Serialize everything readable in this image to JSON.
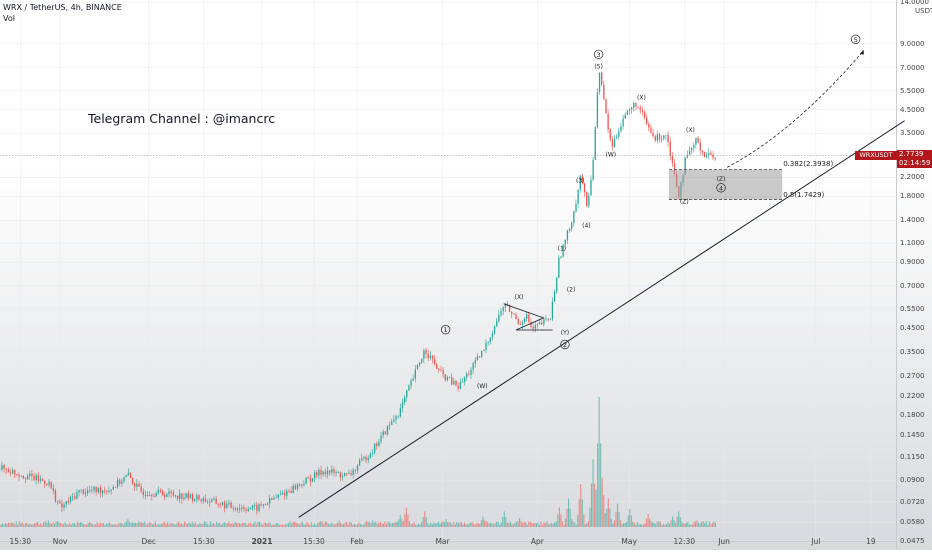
{
  "header": {
    "symbol_line": "WRX / TetherUS, 4h, BINANCE",
    "indicator": "Vol"
  },
  "annotation_text": "Telegram Channel : @imancrc",
  "current_price": {
    "ticker": "WRXUSDT",
    "price": "2.7739",
    "countdown": "02:14:59",
    "value": 2.7739,
    "color": "#b2181b"
  },
  "chart_data": {
    "type": "candlestick",
    "y_scale": "log",
    "y_unit": "USDT",
    "ylim": [
      0.0475,
      14.0
    ],
    "y_ticks": [
      "14.0000",
      "9.0000",
      "7.0000",
      "5.5000",
      "4.5000",
      "3.5000",
      "2.2000",
      "1.8000",
      "1.4000",
      "1.1000",
      "0.9000",
      "0.7000",
      "0.5500",
      "0.4500",
      "0.3500",
      "0.2700",
      "0.2200",
      "0.1800",
      "0.1450",
      "0.1150",
      "0.0900",
      "0.0720",
      "0.0580",
      "0.0475"
    ],
    "y_tick_values": [
      14,
      9,
      7,
      5.5,
      4.5,
      3.5,
      2.2,
      1.8,
      1.4,
      1.1,
      0.9,
      0.7,
      0.55,
      0.45,
      0.35,
      0.27,
      0.22,
      0.18,
      0.145,
      0.115,
      0.09,
      0.072,
      0.058,
      0.0475
    ],
    "x_ticks": [
      "15:30",
      "Nov",
      "Dec",
      "15:30",
      "2021",
      "15:30",
      "Feb",
      "Mar",
      "Apr",
      "May",
      "12:30",
      "Jun",
      "Jul",
      "19"
    ],
    "x_tick_days": [
      -79,
      -66,
      -37,
      -19,
      0,
      17,
      31,
      59,
      90,
      120,
      138,
      151,
      181,
      199
    ],
    "price_path": [
      {
        "day": -88,
        "price": 0.105
      },
      {
        "day": -80,
        "price": 0.097
      },
      {
        "day": -70,
        "price": 0.088
      },
      {
        "day": -66,
        "price": 0.067
      },
      {
        "day": -60,
        "price": 0.08
      },
      {
        "day": -50,
        "price": 0.082
      },
      {
        "day": -44,
        "price": 0.095
      },
      {
        "day": -40,
        "price": 0.08
      },
      {
        "day": -30,
        "price": 0.078
      },
      {
        "day": -20,
        "price": 0.074
      },
      {
        "day": -10,
        "price": 0.068
      },
      {
        "day": -2,
        "price": 0.067
      },
      {
        "day": 10,
        "price": 0.083
      },
      {
        "day": 20,
        "price": 0.1
      },
      {
        "day": 28,
        "price": 0.094
      },
      {
        "day": 36,
        "price": 0.125
      },
      {
        "day": 45,
        "price": 0.19
      },
      {
        "day": 53,
        "price": 0.36
      },
      {
        "day": 58,
        "price": 0.28
      },
      {
        "day": 64,
        "price": 0.24
      },
      {
        "day": 72,
        "price": 0.35
      },
      {
        "day": 79,
        "price": 0.58
      },
      {
        "day": 84,
        "price": 0.47
      },
      {
        "day": 86,
        "price": 0.52
      },
      {
        "day": 88,
        "price": 0.44
      },
      {
        "day": 94,
        "price": 0.5
      },
      {
        "day": 97,
        "price": 0.95
      },
      {
        "day": 100,
        "price": 1.25
      },
      {
        "day": 102,
        "price": 1.6
      },
      {
        "day": 104,
        "price": 2.3
      },
      {
        "day": 106,
        "price": 1.55
      },
      {
        "day": 108,
        "price": 2.7
      },
      {
        "day": 110,
        "price": 7.0
      },
      {
        "day": 112,
        "price": 4.4
      },
      {
        "day": 114,
        "price": 3.0
      },
      {
        "day": 118,
        "price": 4.2
      },
      {
        "day": 122,
        "price": 4.8
      },
      {
        "day": 128,
        "price": 3.3
      },
      {
        "day": 132,
        "price": 3.5
      },
      {
        "day": 134,
        "price": 2.5
      },
      {
        "day": 136,
        "price": 1.85
      },
      {
        "day": 138,
        "price": 2.6
      },
      {
        "day": 142,
        "price": 3.3
      },
      {
        "day": 144,
        "price": 2.8
      },
      {
        "day": 148,
        "price": 2.77
      }
    ],
    "trendline": [
      {
        "day": 12,
        "price": 0.061
      },
      {
        "day": 210,
        "price": 4.0
      }
    ],
    "projection": [
      {
        "day": 152,
        "price": 2.45
      },
      {
        "day": 168,
        "price": 3.2
      },
      {
        "day": 184,
        "price": 5.2
      },
      {
        "day": 196,
        "price": 8.2
      }
    ],
    "fib_box": {
      "day_start": 133,
      "day_end": 170,
      "top": 2.3938,
      "bottom": 1.7429
    },
    "fib_levels": [
      {
        "label": "0.382(2.3938)",
        "price": 2.3938
      },
      {
        "label": "0.5(1.7429)",
        "price": 1.7429
      }
    ],
    "wave_labels": [
      {
        "text": "1",
        "circled": true,
        "day": 60,
        "price": 0.43
      },
      {
        "text": "(W)",
        "day": 72,
        "price": 0.238
      },
      {
        "text": "(X)",
        "day": 84,
        "price": 0.61
      },
      {
        "text": "(Y)",
        "day": 99,
        "price": 0.42
      },
      {
        "text": "2",
        "circled": true,
        "day": 99,
        "price": 0.368
      },
      {
        "text": "(1)",
        "day": 98,
        "price": 1.02
      },
      {
        "text": "(2)",
        "day": 101,
        "price": 0.66
      },
      {
        "text": "(3)",
        "day": 104,
        "price": 2.08
      },
      {
        "text": "(4)",
        "day": 106,
        "price": 1.3
      },
      {
        "text": "3",
        "circled": true,
        "day": 110,
        "price": 7.85
      },
      {
        "text": "(5)",
        "day": 110,
        "price": 6.95
      },
      {
        "text": "(W)",
        "day": 114,
        "price": 2.75
      },
      {
        "text": "(X)",
        "day": 124,
        "price": 5.0
      },
      {
        "text": "(X)",
        "day": 140,
        "price": 3.55
      },
      {
        "text": "(Z)",
        "day": 138,
        "price": 1.67
      },
      {
        "text": "(Z)",
        "day": 150,
        "price": 2.12
      },
      {
        "text": "4",
        "circled": true,
        "day": 150,
        "price": 1.92
      },
      {
        "text": "5",
        "circled": true,
        "day": 194,
        "price": 9.2
      }
    ],
    "volume": [
      {
        "day": -79,
        "v": 0.03
      },
      {
        "day": -70,
        "v": 0.05
      },
      {
        "day": -60,
        "v": 0.03
      },
      {
        "day": -44,
        "v": 0.06
      },
      {
        "day": -30,
        "v": 0.02
      },
      {
        "day": -10,
        "v": 0.03
      },
      {
        "day": 10,
        "v": 0.04
      },
      {
        "day": 25,
        "v": 0.05
      },
      {
        "day": 36,
        "v": 0.05
      },
      {
        "day": 45,
        "v": 0.09
      },
      {
        "day": 47,
        "v": 0.15
      },
      {
        "day": 53,
        "v": 0.12
      },
      {
        "day": 60,
        "v": 0.06
      },
      {
        "day": 72,
        "v": 0.08
      },
      {
        "day": 79,
        "v": 0.12
      },
      {
        "day": 84,
        "v": 0.07
      },
      {
        "day": 97,
        "v": 0.15
      },
      {
        "day": 100,
        "v": 0.22
      },
      {
        "day": 104,
        "v": 0.33
      },
      {
        "day": 108,
        "v": 0.52
      },
      {
        "day": 110,
        "v": 1.0
      },
      {
        "day": 111,
        "v": 0.38
      },
      {
        "day": 113,
        "v": 0.22
      },
      {
        "day": 116,
        "v": 0.18
      },
      {
        "day": 120,
        "v": 0.14
      },
      {
        "day": 126,
        "v": 0.1
      },
      {
        "day": 134,
        "v": 0.08
      },
      {
        "day": 136,
        "v": 0.12
      },
      {
        "day": 142,
        "v": 0.05
      },
      {
        "day": 148,
        "v": 0.03
      }
    ],
    "colors": {
      "up": "#26a69a",
      "down": "#ef5350",
      "line": "#131722"
    }
  }
}
